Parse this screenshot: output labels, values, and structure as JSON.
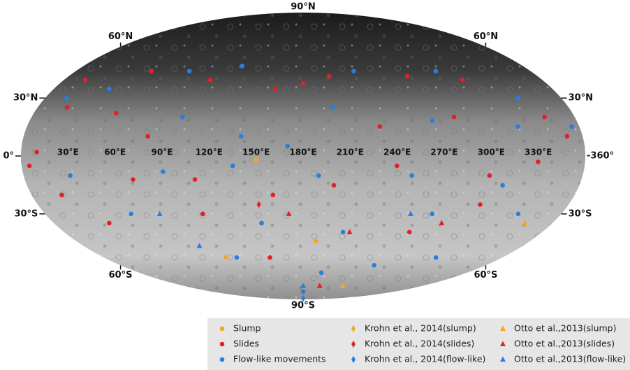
{
  "map": {
    "lat_labels": [
      {
        "value": 90,
        "label": "90°N"
      },
      {
        "value": 60,
        "label": "60°N"
      },
      {
        "value": 30,
        "label": "30°N"
      },
      {
        "value": 0,
        "label": "0°"
      },
      {
        "value": -30,
        "label": "30°S"
      },
      {
        "value": -60,
        "label": "60°S"
      },
      {
        "value": -90,
        "label": "90°S"
      }
    ],
    "end_label": {
      "value": 360,
      "label": "-360°"
    },
    "lon_labels": [
      {
        "value": 30,
        "label": "30°E"
      },
      {
        "value": 60,
        "label": "60°E"
      },
      {
        "value": 90,
        "label": "90°E"
      },
      {
        "value": 120,
        "label": "120°E"
      },
      {
        "value": 150,
        "label": "150°E"
      },
      {
        "value": 180,
        "label": "180°E"
      },
      {
        "value": 210,
        "label": "210°E"
      },
      {
        "value": 240,
        "label": "240°E"
      },
      {
        "value": 270,
        "label": "270°E"
      },
      {
        "value": 300,
        "label": "300°E"
      },
      {
        "value": 330,
        "label": "330°E"
      }
    ],
    "series": [
      {
        "name": "Slump",
        "color": "#f5a623",
        "marker": "circle",
        "lon": [
          150,
          190
        ],
        "lat": [
          -2,
          -45
        ]
      },
      {
        "name": "Slides",
        "color": "#e3202a",
        "marker": "circle",
        "lon": [
          16,
          60,
          110,
          160,
          200,
          260,
          300,
          20,
          55,
          80,
          10,
          5,
          70,
          110,
          160,
          200,
          240,
          300,
          330,
          350,
          340,
          40,
          110,
          260,
          300,
          20,
          180,
          230,
          280,
          150
        ],
        "lat": [
          40,
          45,
          40,
          35,
          42,
          42,
          40,
          25,
          22,
          10,
          2,
          -5,
          -12,
          -12,
          -20,
          -15,
          -5,
          -10,
          -3,
          10,
          20,
          -35,
          -30,
          -40,
          -25,
          -20,
          38,
          15,
          20,
          -55
        ]
      },
      {
        "name": "Flow-like movements",
        "color": "#2a7de1",
        "marker": "circle",
        "lon": [
          40,
          90,
          130,
          220,
          285,
          330,
          15,
          100,
          140,
          170,
          200,
          265,
          320,
          355,
          30,
          90,
          135,
          190,
          250,
          310,
          60,
          150,
          210,
          270,
          330,
          120,
          200,
          250,
          180,
          300
        ],
        "lat": [
          35,
          45,
          48,
          45,
          45,
          30,
          30,
          20,
          10,
          5,
          25,
          18,
          15,
          15,
          -10,
          -8,
          -5,
          -10,
          -10,
          -15,
          -30,
          -35,
          -40,
          -30,
          -30,
          -55,
          -65,
          -60,
          -80,
          -55
        ]
      },
      {
        "name": "Krohn et al., 2014(slump)",
        "color": "#f5a623",
        "marker": "diamond",
        "lon": [
          110
        ],
        "lat": [
          -55
        ]
      },
      {
        "name": "Krohn et al., 2014(slides)",
        "color": "#e3202a",
        "marker": "diamond",
        "lon": [
          150
        ],
        "lat": [
          -25
        ]
      },
      {
        "name": "Krohn et al., 2014(flow-like)",
        "color": "#2a7de1",
        "marker": "diamond",
        "lon": [
          180
        ],
        "lat": [
          -88
        ]
      },
      {
        "name": "Otto et al.,2013(slump)",
        "color": "#f5a623",
        "marker": "triangle",
        "lon": [
          340,
          240
        ],
        "lat": [
          -35,
          -75
        ]
      },
      {
        "name": "Otto et al.,2013(slides)",
        "color": "#e3202a",
        "marker": "triangle",
        "lon": [
          170,
          215,
          280,
          205
        ],
        "lat": [
          -30,
          -40,
          -35,
          -75
        ]
      },
      {
        "name": "Otto et al.,2013(flow-like)",
        "color": "#2a7de1",
        "marker": "triangle",
        "lon": [
          80,
          95,
          180,
          255
        ],
        "lat": [
          -30,
          -48,
          -75,
          -30
        ]
      }
    ]
  }
}
